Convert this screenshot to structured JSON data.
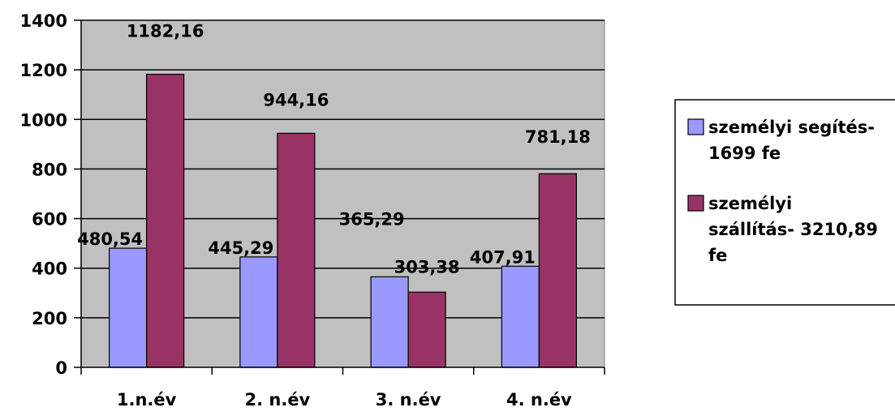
{
  "chart_data": {
    "type": "bar",
    "categories": [
      "1.n.év",
      "2. n.év",
      "3. n.év",
      "4. n.év"
    ],
    "series": [
      {
        "name_lines": [
          "személyi segítés-",
          "1699 fe"
        ],
        "values": [
          480.54,
          445.29,
          365.29,
          407.91
        ],
        "labels": [
          "480,54",
          "445,29",
          "365,29",
          "407,91"
        ],
        "color": "#9999ff"
      },
      {
        "name_lines": [
          "személyi",
          "szállítás- 3210,89",
          "fe"
        ],
        "values": [
          1182.16,
          944.16,
          303.38,
          781.18
        ],
        "labels": [
          "1182,16",
          "944,16",
          "303,38",
          "781,18"
        ],
        "color": "#993366"
      }
    ],
    "y_ticks": [
      "0",
      "200",
      "400",
      "600",
      "800",
      "1000",
      "1200",
      "1400"
    ],
    "ylim": [
      0,
      1400
    ],
    "grid": true,
    "plot_background": "#c0c0c0",
    "legend_position": "right"
  }
}
